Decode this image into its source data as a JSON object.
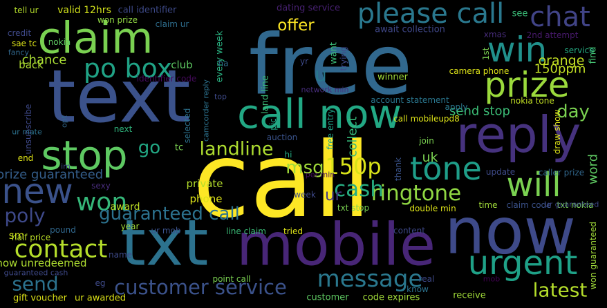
{
  "words": [
    {
      "text": "call",
      "color": "#fde725"
    },
    {
      "text": "free",
      "color": "#31688e"
    },
    {
      "text": "text",
      "color": "#3b528b"
    },
    {
      "text": "now",
      "color": "#3e4a89"
    },
    {
      "text": "txt",
      "color": "#2c728e"
    },
    {
      "text": "claim",
      "color": "#7ad151"
    },
    {
      "text": "reply",
      "color": "#46327e"
    },
    {
      "text": "mobile",
      "color": "#482677"
    },
    {
      "text": "call now",
      "color": "#22a884"
    },
    {
      "text": "stop",
      "color": "#5ec962"
    },
    {
      "text": "please call",
      "color": "#2a788e"
    },
    {
      "text": "prize",
      "color": "#9bd93c"
    },
    {
      "text": "win",
      "color": "#21918c"
    },
    {
      "text": "urgent",
      "color": "#1fa187"
    },
    {
      "text": "new",
      "color": "#3b528b"
    },
    {
      "text": "will",
      "color": "#7ad151"
    },
    {
      "text": "chat",
      "color": "#414487"
    },
    {
      "text": "tone",
      "color": "#1f9e89"
    },
    {
      "text": "contact",
      "color": "#b5de2b"
    },
    {
      "text": "message",
      "color": "#2a788e"
    },
    {
      "text": "customer service",
      "color": "#3b528b"
    },
    {
      "text": "ringtone",
      "color": "#90d743"
    },
    {
      "text": "won",
      "color": "#35b779"
    },
    {
      "text": "po box",
      "color": "#20a386"
    },
    {
      "text": "cash",
      "color": "#27ad81"
    },
    {
      "text": "landline",
      "color": "#addc30"
    },
    {
      "text": "send",
      "color": "#2c728e"
    },
    {
      "text": "latest",
      "color": "#b5de2b"
    },
    {
      "text": "150p",
      "color": "#d8e219"
    },
    {
      "text": "poly",
      "color": "#3e4989"
    },
    {
      "text": "guaranteed call",
      "color": "#2c728e"
    },
    {
      "text": "go",
      "color": "#22a884"
    },
    {
      "text": "msg",
      "color": "#a0da39"
    },
    {
      "text": "day",
      "color": "#7ad151"
    },
    {
      "text": "offer",
      "color": "#fde725"
    },
    {
      "text": "uk",
      "color": "#7ad151"
    },
    {
      "text": "u",
      "color": "#2a788e"
    },
    {
      "text": "prize guaranteed",
      "color": "#355f8d"
    },
    {
      "text": "150ppm",
      "color": "#c2df23"
    },
    {
      "text": "orange",
      "color": "#c2df23"
    },
    {
      "text": "ur",
      "color": "#443983"
    },
    {
      "text": "show unredeemed",
      "color": "#addc30"
    },
    {
      "text": "po box",
      "color": "#20a386"
    },
    {
      "text": "chance",
      "color": "#a8db34"
    },
    {
      "text": "collect",
      "color": "#35b779"
    },
    {
      "text": "word",
      "color": "#5ec962"
    },
    {
      "text": "send stop",
      "color": "#3bbb75"
    },
    {
      "text": "back",
      "color": "#addc30"
    },
    {
      "text": "club",
      "color": "#5ec962"
    },
    {
      "text": "sm",
      "color": "#d0e11c"
    },
    {
      "text": "award",
      "color": "#bddf26"
    },
    {
      "text": "phone",
      "color": "#dde318"
    },
    {
      "text": "private",
      "color": "#b5de2b"
    },
    {
      "text": "nokia tone",
      "color": "#c2df23"
    },
    {
      "text": "camera phone",
      "color": "#dde318"
    },
    {
      "text": "await collection",
      "color": "#3f4788"
    },
    {
      "text": "valid 12hrs",
      "color": "#d2e21b"
    },
    {
      "text": "call identifier",
      "color": "#3e4a89"
    },
    {
      "text": "dating service",
      "color": "#482173"
    },
    {
      "text": "tell ur",
      "color": "#b5de2b"
    },
    {
      "text": "won prize",
      "color": "#90d743"
    },
    {
      "text": "claim ur",
      "color": "#2e6e8e"
    },
    {
      "text": "see",
      "color": "#3aba76"
    },
    {
      "text": "2nd attempt",
      "color": "#481a6c"
    },
    {
      "text": "find",
      "color": "#44bf70"
    },
    {
      "text": "credit",
      "color": "#3e4989"
    },
    {
      "text": "sae tc",
      "color": "#dde318"
    },
    {
      "text": "fancy",
      "color": "#31688e"
    },
    {
      "text": "nokia",
      "color": "#5ec962"
    },
    {
      "text": "every week",
      "color": "#29af7f"
    },
    {
      "text": "ha",
      "color": "#2e6f8e"
    },
    {
      "text": "yr",
      "color": "#3e4a89"
    },
    {
      "text": "1st",
      "color": "#7ad151"
    },
    {
      "text": "xmas",
      "color": "#472c7a"
    },
    {
      "text": "service",
      "color": "#25ab82"
    },
    {
      "text": "identifier code",
      "color": "#460a5d"
    },
    {
      "text": "land line",
      "color": "#3aba76"
    },
    {
      "text": "want",
      "color": "#3aba76"
    },
    {
      "text": "trying",
      "color": "#3e4989"
    },
    {
      "text": "winner",
      "color": "#a0da39"
    },
    {
      "text": "network min",
      "color": "#472d7b"
    },
    {
      "text": "account statement",
      "color": "#2a768e"
    },
    {
      "text": "camcorder reply",
      "color": "#2c728e"
    },
    {
      "text": "top",
      "color": "#3e4a89"
    },
    {
      "text": "selected",
      "color": "#2c728e"
    },
    {
      "text": "pic",
      "color": "#22a884"
    },
    {
      "text": "apply",
      "color": "#2a788e"
    },
    {
      "text": "call mobileupd8",
      "color": "#dde318"
    },
    {
      "text": "draw show",
      "color": "#dde318"
    },
    {
      "text": "unsubscribe",
      "color": "#3e4989"
    },
    {
      "text": "opt",
      "color": "#31688e"
    },
    {
      "text": "ur mate",
      "color": "#2c728e"
    },
    {
      "text": "next",
      "color": "#2fb47c"
    },
    {
      "text": "free entry",
      "color": "#1fa287"
    },
    {
      "text": "auction",
      "color": "#3a538b"
    },
    {
      "text": "end",
      "color": "#dde318"
    },
    {
      "text": "tc",
      "color": "#7ad151"
    },
    {
      "text": "hi",
      "color": "#25ab82"
    },
    {
      "text": "join",
      "color": "#7ad151"
    },
    {
      "text": "thank",
      "color": "#3a538b"
    },
    {
      "text": "caller prize",
      "color": "#31688e"
    },
    {
      "text": "update",
      "color": "#3e4a89"
    },
    {
      "text": "per min",
      "color": "#470e61"
    },
    {
      "text": "sexy",
      "color": "#472c7a"
    },
    {
      "text": "week",
      "color": "#3e4989"
    },
    {
      "text": "txt stop",
      "color": "#7ad151"
    },
    {
      "text": "double min",
      "color": "#dde318"
    },
    {
      "text": "time",
      "color": "#a0da39"
    },
    {
      "text": "claim code",
      "color": "#3b528b"
    },
    {
      "text": "txt nokia",
      "color": "#7ad151"
    },
    {
      "text": "ur guaranteed",
      "color": "#3e4989"
    },
    {
      "text": "pound",
      "color": "#31688e"
    },
    {
      "text": "year",
      "color": "#a0da39"
    },
    {
      "text": "ur mob",
      "color": "#3b528b"
    },
    {
      "text": "line claim",
      "color": "#3aba76"
    },
    {
      "text": "tried",
      "color": "#dde318"
    },
    {
      "text": "half price",
      "color": "#bddf26"
    },
    {
      "text": "content",
      "color": "#3e4989"
    },
    {
      "text": "name",
      "color": "#3e4a89"
    },
    {
      "text": "guaranteed cash",
      "color": "#3e4989"
    },
    {
      "text": "point call",
      "color": "#7ad151"
    },
    {
      "text": "real",
      "color": "#3e4989"
    },
    {
      "text": "know",
      "color": "#2c728e"
    },
    {
      "text": "receive",
      "color": "#a0da39"
    },
    {
      "text": "won guaranteed",
      "color": "#a0da39"
    },
    {
      "text": "gift voucher",
      "color": "#dde318"
    },
    {
      "text": "ur awarded",
      "color": "#dde318"
    },
    {
      "text": "customer",
      "color": "#5ec962"
    },
    {
      "text": "code expires",
      "color": "#a0da39"
    },
    {
      "text": "eg",
      "color": "#3e4a89"
    },
    {
      "text": "im",
      "color": "#3e4989"
    },
    {
      "text": "mob",
      "color": "#440154"
    },
    {
      "text": "fancy",
      "color": "#31688e"
    }
  ]
}
